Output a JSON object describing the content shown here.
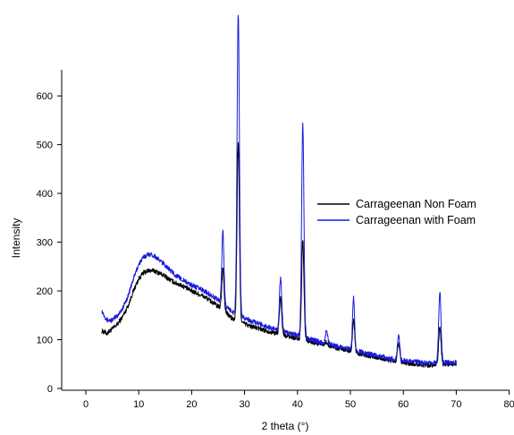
{
  "chart_data": {
    "type": "line",
    "xlabel": "2 theta (°)",
    "ylabel": "Intensity",
    "xlim": [
      -5,
      80
    ],
    "ylim": [
      0,
      660
    ],
    "x_ticks": [
      0,
      10,
      20,
      30,
      40,
      50,
      60,
      70,
      80
    ],
    "y_ticks": [
      0,
      100,
      200,
      300,
      400,
      500,
      600
    ],
    "grid": false,
    "legend_position": "right",
    "series": [
      {
        "name": "Carrageenan Non Foam",
        "color": "#000000",
        "baseline": [
          [
            3,
            118
          ],
          [
            4,
            113
          ],
          [
            5,
            122
          ],
          [
            6,
            132
          ],
          [
            7,
            148
          ],
          [
            8,
            170
          ],
          [
            9,
            200
          ],
          [
            10,
            225
          ],
          [
            11,
            238
          ],
          [
            12,
            242
          ],
          [
            13,
            241
          ],
          [
            14,
            236
          ],
          [
            15,
            230
          ],
          [
            16,
            222
          ],
          [
            17,
            216
          ],
          [
            18,
            212
          ],
          [
            19,
            206
          ],
          [
            20,
            200
          ],
          [
            21,
            195
          ],
          [
            22,
            190
          ],
          [
            23,
            184
          ],
          [
            24,
            176
          ],
          [
            25,
            168
          ],
          [
            26,
            162
          ],
          [
            27,
            150
          ],
          [
            28,
            140
          ],
          [
            29,
            136
          ],
          [
            30,
            133
          ],
          [
            31,
            128
          ],
          [
            32,
            125
          ],
          [
            33,
            122
          ],
          [
            34,
            119
          ],
          [
            35,
            116
          ],
          [
            36,
            113
          ],
          [
            37,
            110
          ],
          [
            38,
            108
          ],
          [
            39,
            105
          ],
          [
            40,
            102
          ],
          [
            41,
            100
          ],
          [
            42,
            97
          ],
          [
            43,
            94
          ],
          [
            44,
            92
          ],
          [
            45,
            90
          ],
          [
            46,
            88
          ],
          [
            47,
            85
          ],
          [
            48,
            82
          ],
          [
            49,
            80
          ],
          [
            50,
            77
          ],
          [
            51,
            74
          ],
          [
            52,
            71
          ],
          [
            53,
            68
          ],
          [
            54,
            66
          ],
          [
            55,
            63
          ],
          [
            56,
            61
          ],
          [
            57,
            59
          ],
          [
            58,
            56
          ],
          [
            59,
            54
          ],
          [
            60,
            52
          ],
          [
            61,
            51
          ],
          [
            62,
            50
          ],
          [
            63,
            49
          ],
          [
            64,
            48
          ],
          [
            65,
            48
          ],
          [
            66,
            48
          ],
          [
            67,
            49
          ],
          [
            68,
            50
          ],
          [
            69,
            50
          ],
          [
            70,
            50
          ]
        ],
        "peaks": [
          {
            "x": 25.9,
            "y": 248,
            "width": 0.2
          },
          {
            "x": 28.8,
            "y": 505,
            "width": 0.22
          },
          {
            "x": 36.8,
            "y": 185,
            "width": 0.22
          },
          {
            "x": 41.0,
            "y": 302,
            "width": 0.22
          },
          {
            "x": 45.5,
            "y": 95,
            "width": 0.2
          },
          {
            "x": 50.6,
            "y": 140,
            "width": 0.2
          },
          {
            "x": 59.1,
            "y": 90,
            "width": 0.22
          },
          {
            "x": 66.9,
            "y": 128,
            "width": 0.22
          }
        ]
      },
      {
        "name": "Carrageenan with Foam",
        "color": "#1a1adb",
        "baseline": [
          [
            3,
            160
          ],
          [
            4,
            140
          ],
          [
            5,
            140
          ],
          [
            6,
            150
          ],
          [
            7,
            165
          ],
          [
            8,
            190
          ],
          [
            9,
            225
          ],
          [
            10,
            255
          ],
          [
            11,
            270
          ],
          [
            12,
            276
          ],
          [
            13,
            272
          ],
          [
            14,
            262
          ],
          [
            15,
            253
          ],
          [
            16,
            242
          ],
          [
            17,
            232
          ],
          [
            18,
            225
          ],
          [
            19,
            218
          ],
          [
            20,
            212
          ],
          [
            21,
            207
          ],
          [
            22,
            202
          ],
          [
            23,
            196
          ],
          [
            24,
            189
          ],
          [
            25,
            182
          ],
          [
            26,
            174
          ],
          [
            27,
            162
          ],
          [
            28,
            155
          ],
          [
            29,
            150
          ],
          [
            30,
            145
          ],
          [
            31,
            140
          ],
          [
            32,
            135
          ],
          [
            33,
            132
          ],
          [
            34,
            128
          ],
          [
            35,
            124
          ],
          [
            36,
            121
          ],
          [
            37,
            118
          ],
          [
            38,
            115
          ],
          [
            39,
            112
          ],
          [
            40,
            109
          ],
          [
            41,
            105
          ],
          [
            42,
            102
          ],
          [
            43,
            99
          ],
          [
            44,
            96
          ],
          [
            45,
            94
          ],
          [
            46,
            91
          ],
          [
            47,
            88
          ],
          [
            48,
            85
          ],
          [
            49,
            83
          ],
          [
            50,
            80
          ],
          [
            51,
            77
          ],
          [
            52,
            75
          ],
          [
            53,
            72
          ],
          [
            54,
            70
          ],
          [
            55,
            67
          ],
          [
            56,
            65
          ],
          [
            57,
            62
          ],
          [
            58,
            60
          ],
          [
            59,
            58
          ],
          [
            60,
            57
          ],
          [
            61,
            56
          ],
          [
            62,
            55
          ],
          [
            63,
            54
          ],
          [
            64,
            53
          ],
          [
            65,
            52
          ],
          [
            66,
            52
          ],
          [
            67,
            52
          ],
          [
            68,
            53
          ],
          [
            69,
            53
          ],
          [
            70,
            53
          ]
        ],
        "peaks": [
          {
            "x": 25.9,
            "y": 322,
            "width": 0.2
          },
          {
            "x": 28.8,
            "y": 770,
            "width": 0.22
          },
          {
            "x": 36.8,
            "y": 225,
            "width": 0.22
          },
          {
            "x": 41.0,
            "y": 540,
            "width": 0.22
          },
          {
            "x": 45.5,
            "y": 118,
            "width": 0.2
          },
          {
            "x": 50.6,
            "y": 188,
            "width": 0.2
          },
          {
            "x": 59.1,
            "y": 108,
            "width": 0.22
          },
          {
            "x": 66.9,
            "y": 198,
            "width": 0.22
          }
        ]
      }
    ]
  }
}
